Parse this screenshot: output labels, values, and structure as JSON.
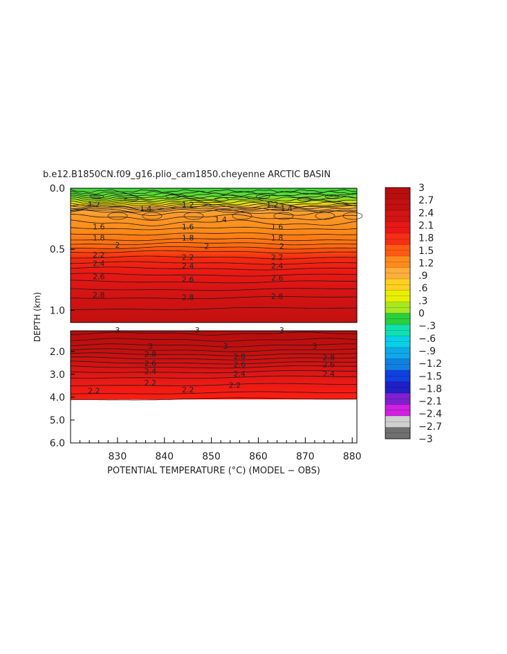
{
  "chart_data": {
    "type": "contour",
    "title": "b.e12.B1850CN.f09_g16.plio_cam1850.cheyenne ARCTIC BASIN",
    "xlabel": "POTENTIAL TEMPERATURE (°C) (MODEL − OBS)",
    "ylabel": "DEPTH (km)",
    "xlim": [
      820,
      881
    ],
    "x_ticks": [
      "830",
      "840",
      "850",
      "860",
      "870",
      "880"
    ],
    "upper_panel": {
      "ylim": [
        0.0,
        1.1
      ],
      "y_ticks": [
        "0.0",
        "0.5",
        "1.0"
      ],
      "contour_labels": [
        {
          "text": "1.2",
          "x": 825,
          "y": 0.14
        },
        {
          "text": "1.4",
          "x": 836,
          "y": 0.17
        },
        {
          "text": "1.2",
          "x": 845,
          "y": 0.14
        },
        {
          "text": "1.4",
          "x": 852,
          "y": 0.26
        },
        {
          "text": "1.2",
          "x": 863,
          "y": 0.14
        },
        {
          "text": "1.4",
          "x": 866,
          "y": 0.17
        },
        {
          "text": "1.6",
          "x": 826,
          "y": 0.32
        },
        {
          "text": "1.6",
          "x": 845,
          "y": 0.32
        },
        {
          "text": "1.6",
          "x": 864,
          "y": 0.32
        },
        {
          "text": "1.8",
          "x": 826,
          "y": 0.41
        },
        {
          "text": "1.8",
          "x": 845,
          "y": 0.41
        },
        {
          "text": "1.8",
          "x": 864,
          "y": 0.41
        },
        {
          "text": "2",
          "x": 830,
          "y": 0.47
        },
        {
          "text": "2",
          "x": 849,
          "y": 0.48
        },
        {
          "text": "2",
          "x": 865,
          "y": 0.48
        },
        {
          "text": "2.2",
          "x": 826,
          "y": 0.55
        },
        {
          "text": "2.2",
          "x": 845,
          "y": 0.57
        },
        {
          "text": "2.2",
          "x": 864,
          "y": 0.57
        },
        {
          "text": "2.4",
          "x": 826,
          "y": 0.62
        },
        {
          "text": "2.4",
          "x": 845,
          "y": 0.64
        },
        {
          "text": "2.4",
          "x": 864,
          "y": 0.64
        },
        {
          "text": "2.6",
          "x": 826,
          "y": 0.73
        },
        {
          "text": "2.6",
          "x": 845,
          "y": 0.75
        },
        {
          "text": "2.6",
          "x": 864,
          "y": 0.74
        },
        {
          "text": "2.8",
          "x": 826,
          "y": 0.88
        },
        {
          "text": "2.8",
          "x": 845,
          "y": 0.9
        },
        {
          "text": "2.8",
          "x": 864,
          "y": 0.89
        }
      ]
    },
    "lower_panel": {
      "ylim": [
        1.1,
        6.0
      ],
      "y_ticks": [
        "2.0",
        "3.0",
        "4.0",
        "5.0",
        "6.0"
      ],
      "data_bottom_depth": 4.1,
      "contour_labels": [
        {
          "text": "3",
          "x": 830,
          "y": 1.1
        },
        {
          "text": "3",
          "x": 847,
          "y": 1.1
        },
        {
          "text": "3",
          "x": 865,
          "y": 1.1
        },
        {
          "text": "3",
          "x": 837,
          "y": 1.8
        },
        {
          "text": "3",
          "x": 853,
          "y": 1.8
        },
        {
          "text": "3",
          "x": 872,
          "y": 1.8
        },
        {
          "text": "2.8",
          "x": 837,
          "y": 2.15
        },
        {
          "text": "2.8",
          "x": 856,
          "y": 2.25
        },
        {
          "text": "2.8",
          "x": 875,
          "y": 2.3
        },
        {
          "text": "2.6",
          "x": 837,
          "y": 2.55
        },
        {
          "text": "2.6",
          "x": 856,
          "y": 2.6
        },
        {
          "text": "2.6",
          "x": 875,
          "y": 2.6
        },
        {
          "text": "2.4",
          "x": 837,
          "y": 2.9
        },
        {
          "text": "2.4",
          "x": 856,
          "y": 3.0
        },
        {
          "text": "2.4",
          "x": 875,
          "y": 3.0
        },
        {
          "text": "2.2",
          "x": 837,
          "y": 3.4
        },
        {
          "text": "2.2",
          "x": 855,
          "y": 3.5
        },
        {
          "text": "2.2",
          "x": 825,
          "y": 3.75
        },
        {
          "text": "2.2",
          "x": 845,
          "y": 3.7
        }
      ]
    },
    "colorbar": {
      "range": [
        -3,
        3
      ],
      "tick_labels": [
        "3",
        "2.7",
        "2.4",
        "2.1",
        "1.8",
        "1.5",
        "1.2",
        ".9",
        ".6",
        ".3",
        "0",
        "−.3",
        "−.6",
        "−.9",
        "−1.2",
        "−1.5",
        "−1.8",
        "−2.1",
        "−2.4",
        "−2.7",
        "−3"
      ],
      "colors": [
        "#b80e0e",
        "#c01010",
        "#d21414",
        "#e81818",
        "#f52e16",
        "#ff5a12",
        "#ff8a1c",
        "#ffae3c",
        "#ffd020",
        "#e8f000",
        "#a8e820",
        "#28d03c",
        "#10e0b0",
        "#08d0e8",
        "#10a8e8",
        "#1080e0",
        "#1040e0",
        "#2020c8",
        "#8020d0",
        "#d020e0",
        "#d0d0d0",
        "#707070"
      ]
    }
  }
}
